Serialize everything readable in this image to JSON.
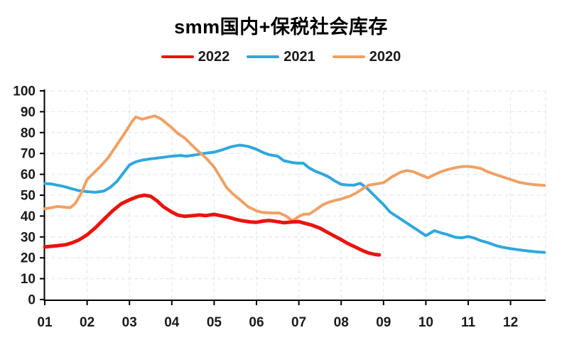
{
  "title": "smm国内+保税社会库存",
  "legend": [
    {
      "label": "2022",
      "color": "#e9140f"
    },
    {
      "label": "2021",
      "color": "#30a7db"
    },
    {
      "label": "2020",
      "color": "#efa164"
    }
  ],
  "colors": {
    "axis": "#000000",
    "tick_label": "#1a1a1a",
    "gridline": "#e2eaf4",
    "background": "#ffffff"
  },
  "chart_data": {
    "type": "line",
    "title": "smm国内+保税社会库存",
    "xlabel": "",
    "ylabel": "",
    "grid": true,
    "legend_position": "top",
    "x_tick_labels": [
      "01",
      "02",
      "03",
      "04",
      "05",
      "06",
      "07",
      "08",
      "09",
      "10",
      "11",
      "12"
    ],
    "y_ticks": [
      0,
      10,
      20,
      30,
      40,
      50,
      60,
      70,
      80,
      90,
      100
    ],
    "ylim": [
      0,
      100
    ],
    "x_range": [
      1,
      12.8
    ],
    "series": [
      {
        "name": "2022",
        "color": "#e9140f",
        "width": 5,
        "points": [
          [
            1.0,
            25.2
          ],
          [
            1.15,
            25.5
          ],
          [
            1.3,
            25.8
          ],
          [
            1.5,
            26.3
          ],
          [
            1.65,
            27.2
          ],
          [
            1.8,
            28.5
          ],
          [
            2.0,
            31.0
          ],
          [
            2.2,
            34.5
          ],
          [
            2.4,
            38.5
          ],
          [
            2.6,
            42.5
          ],
          [
            2.8,
            45.8
          ],
          [
            3.0,
            47.8
          ],
          [
            3.2,
            49.4
          ],
          [
            3.35,
            50.0
          ],
          [
            3.5,
            49.5
          ],
          [
            3.65,
            47.3
          ],
          [
            3.8,
            44.5
          ],
          [
            4.0,
            41.9
          ],
          [
            4.15,
            40.4
          ],
          [
            4.3,
            39.9
          ],
          [
            4.5,
            40.2
          ],
          [
            4.65,
            40.5
          ],
          [
            4.8,
            40.2
          ],
          [
            5.0,
            40.8
          ],
          [
            5.15,
            40.2
          ],
          [
            5.3,
            39.6
          ],
          [
            5.5,
            38.5
          ],
          [
            5.65,
            37.8
          ],
          [
            5.85,
            37.2
          ],
          [
            6.0,
            37.0
          ],
          [
            6.15,
            37.6
          ],
          [
            6.3,
            37.9
          ],
          [
            6.5,
            37.3
          ],
          [
            6.65,
            36.8
          ],
          [
            6.85,
            37.2
          ],
          [
            7.0,
            37.3
          ],
          [
            7.15,
            36.5
          ],
          [
            7.3,
            35.7
          ],
          [
            7.5,
            34.2
          ],
          [
            7.65,
            32.5
          ],
          [
            7.85,
            30.3
          ],
          [
            8.0,
            28.7
          ],
          [
            8.15,
            26.9
          ],
          [
            8.35,
            25.0
          ],
          [
            8.5,
            23.5
          ],
          [
            8.65,
            22.3
          ],
          [
            8.8,
            21.6
          ],
          [
            8.9,
            21.4
          ]
        ]
      },
      {
        "name": "2021",
        "color": "#30a7db",
        "width": 4,
        "points": [
          [
            1.0,
            55.6
          ],
          [
            1.15,
            55.4
          ],
          [
            1.3,
            54.8
          ],
          [
            1.45,
            54.2
          ],
          [
            1.6,
            53.3
          ],
          [
            1.8,
            52.2
          ],
          [
            2.0,
            51.7
          ],
          [
            2.2,
            51.4
          ],
          [
            2.4,
            52.0
          ],
          [
            2.55,
            53.8
          ],
          [
            2.7,
            56.5
          ],
          [
            2.85,
            60.5
          ],
          [
            3.0,
            64.5
          ],
          [
            3.15,
            66.0
          ],
          [
            3.3,
            66.8
          ],
          [
            3.5,
            67.4
          ],
          [
            3.7,
            67.9
          ],
          [
            3.85,
            68.3
          ],
          [
            4.0,
            68.7
          ],
          [
            4.2,
            69.0
          ],
          [
            4.35,
            68.7
          ],
          [
            4.55,
            69.3
          ],
          [
            4.75,
            70.0
          ],
          [
            5.0,
            70.6
          ],
          [
            5.2,
            71.8
          ],
          [
            5.4,
            73.2
          ],
          [
            5.6,
            74.0
          ],
          [
            5.8,
            73.4
          ],
          [
            6.0,
            72.0
          ],
          [
            6.15,
            70.5
          ],
          [
            6.3,
            69.4
          ],
          [
            6.5,
            68.7
          ],
          [
            6.65,
            66.5
          ],
          [
            6.85,
            65.6
          ],
          [
            7.0,
            65.3
          ],
          [
            7.1,
            65.4
          ],
          [
            7.25,
            63.0
          ],
          [
            7.4,
            61.4
          ],
          [
            7.55,
            60.2
          ],
          [
            7.7,
            58.8
          ],
          [
            7.85,
            56.8
          ],
          [
            8.0,
            55.2
          ],
          [
            8.15,
            54.9
          ],
          [
            8.3,
            54.8
          ],
          [
            8.45,
            55.7
          ],
          [
            8.6,
            53.5
          ],
          [
            8.75,
            50.5
          ],
          [
            8.9,
            47.5
          ],
          [
            9.0,
            45.5
          ],
          [
            9.15,
            42.0
          ],
          [
            9.3,
            40.0
          ],
          [
            9.5,
            37.3
          ],
          [
            9.65,
            35.3
          ],
          [
            9.8,
            33.3
          ],
          [
            10.0,
            30.6
          ],
          [
            10.2,
            33.0
          ],
          [
            10.35,
            32.0
          ],
          [
            10.5,
            31.2
          ],
          [
            10.7,
            29.8
          ],
          [
            10.85,
            29.6
          ],
          [
            11.0,
            30.2
          ],
          [
            11.15,
            29.4
          ],
          [
            11.3,
            28.2
          ],
          [
            11.5,
            27.0
          ],
          [
            11.65,
            25.9
          ],
          [
            11.8,
            25.1
          ],
          [
            12.0,
            24.4
          ],
          [
            12.2,
            23.8
          ],
          [
            12.4,
            23.3
          ],
          [
            12.6,
            22.9
          ],
          [
            12.8,
            22.6
          ]
        ]
      },
      {
        "name": "2020",
        "color": "#efa164",
        "width": 4,
        "points": [
          [
            1.0,
            43.5
          ],
          [
            1.15,
            44.0
          ],
          [
            1.3,
            44.6
          ],
          [
            1.45,
            44.3
          ],
          [
            1.6,
            44.0
          ],
          [
            1.72,
            46.0
          ],
          [
            1.85,
            50.5
          ],
          [
            2.0,
            57.5
          ],
          [
            2.15,
            60.5
          ],
          [
            2.3,
            63.5
          ],
          [
            2.5,
            68.0
          ],
          [
            2.7,
            74.0
          ],
          [
            2.9,
            80.0
          ],
          [
            3.05,
            85.0
          ],
          [
            3.15,
            87.5
          ],
          [
            3.3,
            86.4
          ],
          [
            3.45,
            87.2
          ],
          [
            3.6,
            88.0
          ],
          [
            3.75,
            86.5
          ],
          [
            3.9,
            84.0
          ],
          [
            4.0,
            82.3
          ],
          [
            4.15,
            79.5
          ],
          [
            4.3,
            77.5
          ],
          [
            4.45,
            74.5
          ],
          [
            4.6,
            71.5
          ],
          [
            4.8,
            68.0
          ],
          [
            5.0,
            63.5
          ],
          [
            5.15,
            58.5
          ],
          [
            5.3,
            53.5
          ],
          [
            5.45,
            50.5
          ],
          [
            5.6,
            48.0
          ],
          [
            5.8,
            44.5
          ],
          [
            6.0,
            42.5
          ],
          [
            6.15,
            41.7
          ],
          [
            6.35,
            41.5
          ],
          [
            6.55,
            41.4
          ],
          [
            6.7,
            40.0
          ],
          [
            6.85,
            37.7
          ],
          [
            7.0,
            39.8
          ],
          [
            7.1,
            40.8
          ],
          [
            7.25,
            41.0
          ],
          [
            7.4,
            43.0
          ],
          [
            7.55,
            45.2
          ],
          [
            7.7,
            46.6
          ],
          [
            7.85,
            47.5
          ],
          [
            8.0,
            48.2
          ],
          [
            8.2,
            49.5
          ],
          [
            8.35,
            51.0
          ],
          [
            8.5,
            53.0
          ],
          [
            8.65,
            54.8
          ],
          [
            8.8,
            55.3
          ],
          [
            9.0,
            56.0
          ],
          [
            9.2,
            58.8
          ],
          [
            9.4,
            61.0
          ],
          [
            9.55,
            61.8
          ],
          [
            9.7,
            61.3
          ],
          [
            9.85,
            60.0
          ],
          [
            10.05,
            58.3
          ],
          [
            10.2,
            59.8
          ],
          [
            10.35,
            61.2
          ],
          [
            10.5,
            62.2
          ],
          [
            10.7,
            63.2
          ],
          [
            10.85,
            63.7
          ],
          [
            11.0,
            63.8
          ],
          [
            11.15,
            63.4
          ],
          [
            11.3,
            62.8
          ],
          [
            11.45,
            61.3
          ],
          [
            11.6,
            60.2
          ],
          [
            11.75,
            59.2
          ],
          [
            11.9,
            58.2
          ],
          [
            12.05,
            57.2
          ],
          [
            12.2,
            56.2
          ],
          [
            12.35,
            55.6
          ],
          [
            12.5,
            55.2
          ],
          [
            12.65,
            54.9
          ],
          [
            12.8,
            54.7
          ]
        ]
      }
    ]
  }
}
